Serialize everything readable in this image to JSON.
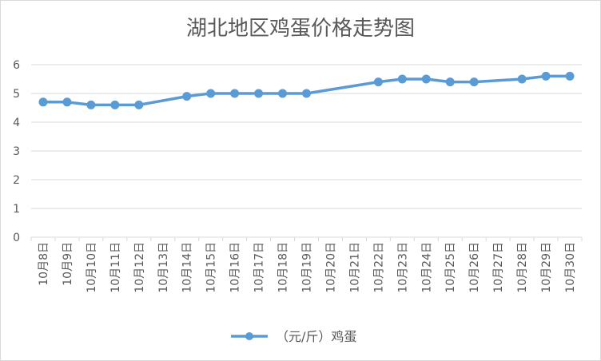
{
  "chart_data": {
    "type": "line",
    "title": "湖北地区鸡蛋价格走势图",
    "xlabel": "",
    "ylabel": "",
    "ylim": [
      0,
      6
    ],
    "yticks": [
      0,
      1,
      2,
      3,
      4,
      5,
      6
    ],
    "grid": true,
    "legend_position": "bottom",
    "line_color": "#5b9bd5",
    "categories": [
      "10月8日",
      "10月9日",
      "10月10日",
      "10月11日",
      "10月12日",
      "10月13日",
      "10月14日",
      "10月15日",
      "10月16日",
      "10月17日",
      "10月18日",
      "10月19日",
      "10月20日",
      "10月21日",
      "10月22日",
      "10月23日",
      "10月24日",
      "10月25日",
      "10月26日",
      "10月27日",
      "10月28日",
      "10月29日",
      "10月30日"
    ],
    "series": [
      {
        "name": "（元/斤）鸡蛋",
        "values": [
          4.7,
          4.7,
          4.6,
          4.6,
          4.6,
          null,
          4.9,
          5.0,
          5.0,
          5.0,
          5.0,
          5.0,
          null,
          null,
          5.4,
          5.5,
          5.5,
          5.4,
          5.4,
          null,
          5.5,
          5.6,
          5.6
        ]
      }
    ]
  }
}
